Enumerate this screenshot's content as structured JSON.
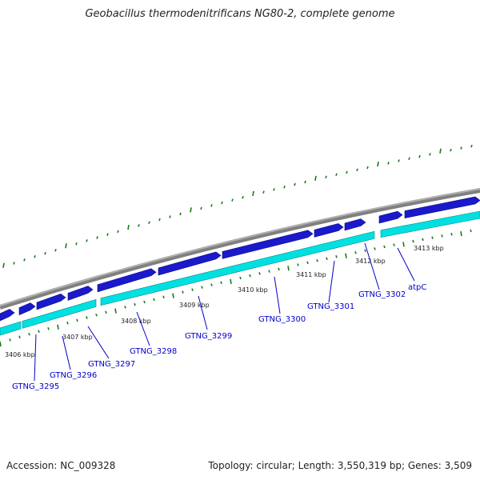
{
  "title": "Geobacillus thermodenitrificans NG80-2, complete genome",
  "footer": {
    "accession": "Accession: NC_009328",
    "summary": "Topology: circular; Length: 3,550,319 bp; Genes: 3,509"
  },
  "colors": {
    "backbone": "#808080",
    "forward_gene": "#1a1acc",
    "reverse_gene": "#00e0e0",
    "ticks": "#1a7a1a",
    "label": "#0000cc"
  },
  "kbp_labels": [
    "3406 kbp",
    "3407 kbp",
    "3408 kbp",
    "3409 kbp",
    "3410 kbp",
    "3411 kbp",
    "3412 kbp",
    "3413 kbp"
  ],
  "gene_labels": [
    "GTNG_3295",
    "GTNG_3296",
    "GTNG_3297",
    "GTNG_3298",
    "GTNG_3299",
    "GTNG_3300",
    "GTNG_3301",
    "GTNG_3302",
    "atpC"
  ]
}
